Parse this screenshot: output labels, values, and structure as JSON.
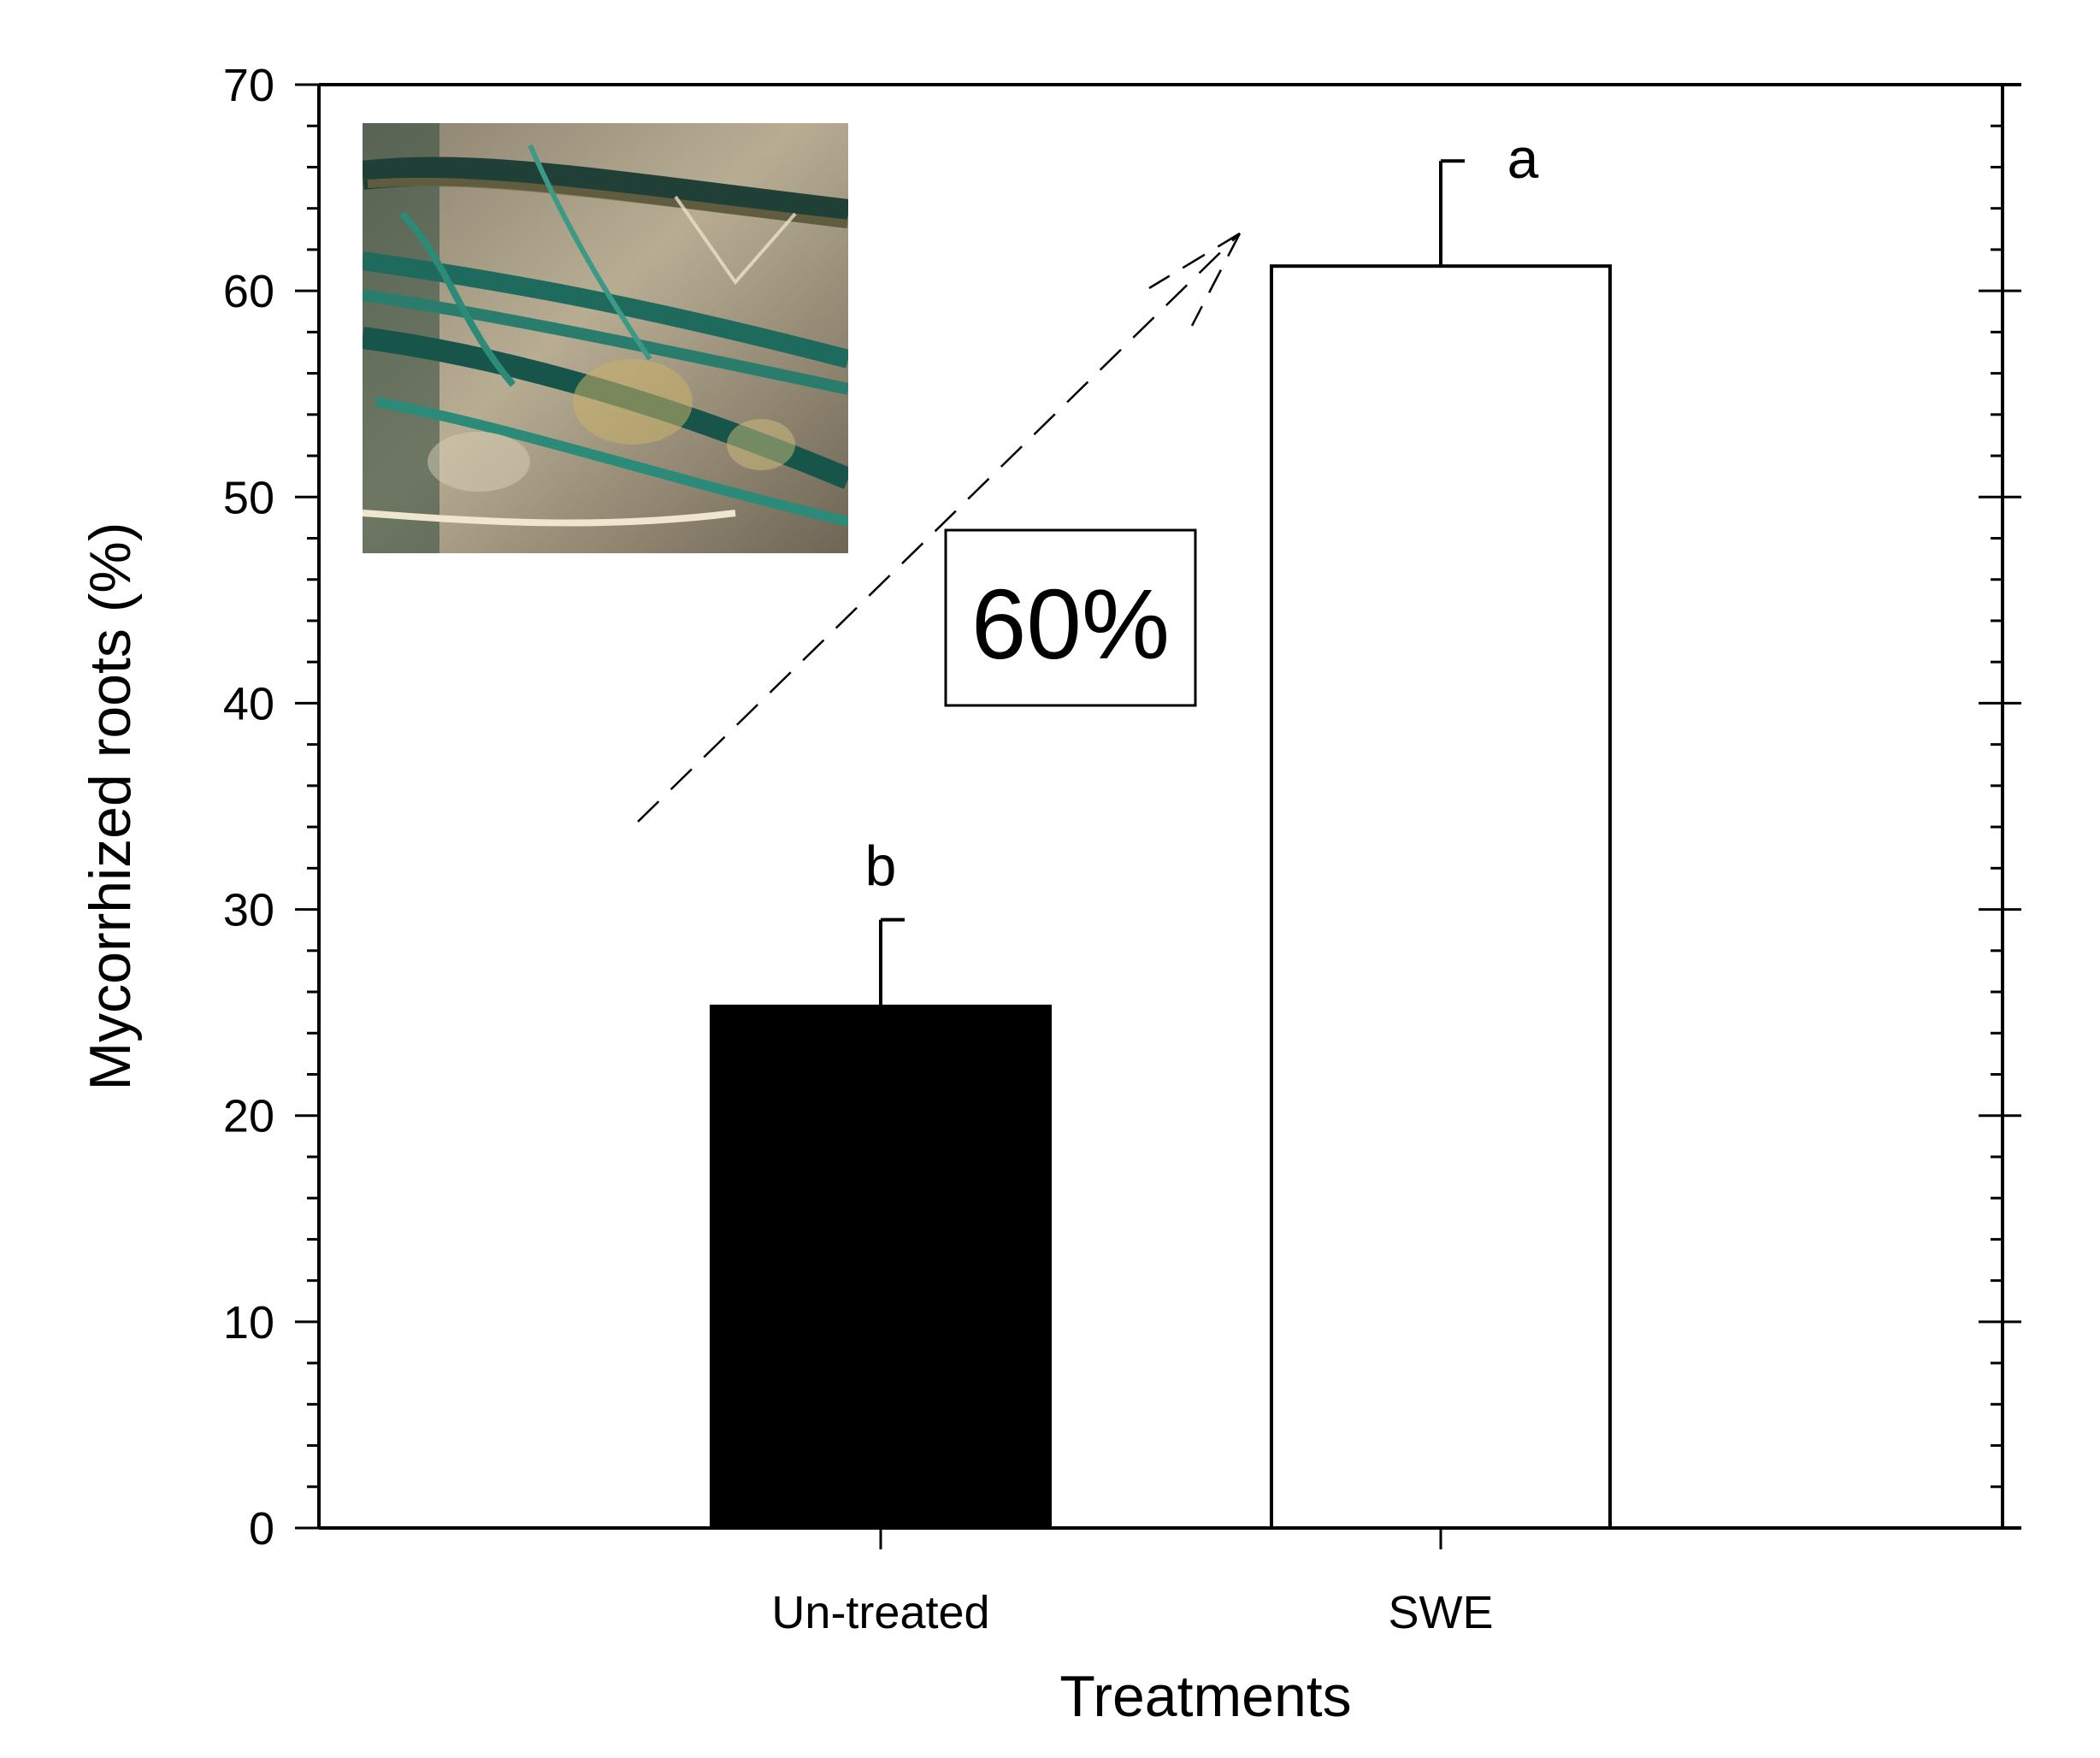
{
  "chart_data": {
    "type": "bar",
    "title": "",
    "xlabel": "Treatments",
    "ylabel": "Mycorrhized roots (%)",
    "ylim": [
      0,
      70
    ],
    "yticks": [
      "0",
      "10",
      "20",
      "30",
      "40",
      "50",
      "60",
      "70"
    ],
    "ytick_values": [
      0,
      10,
      20,
      30,
      40,
      50,
      60,
      70
    ],
    "categories": [
      "Un-treated",
      "SWE"
    ],
    "values": [
      25.3,
      61.2
    ],
    "errors": [
      4.2,
      5.1
    ],
    "significance": [
      "b",
      "a"
    ],
    "bar_fill": [
      "#000000",
      "#ffffff"
    ],
    "grid": false,
    "legend": "none",
    "annotation": {
      "text": "60%",
      "arrow": "dashed, from Un-treated toward SWE"
    },
    "inset": "micrograph of blue-stained mycorrhized roots, top-left"
  }
}
